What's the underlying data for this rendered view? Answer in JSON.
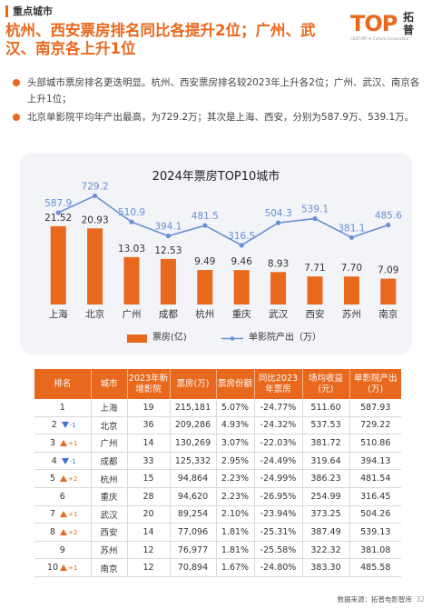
{
  "section_tag": "重点城市",
  "headline": "杭州、西安票房排名同比各提升2位；广州、武汉、南京各上升1位",
  "logo": {
    "mark": "TOP",
    "name": "拓普",
    "tagline": "CENTURY ♦ Culture Corporation"
  },
  "bullets": [
    "头部城市票房排名更迭明显。杭州、西安票房排名较2023年上升各2位；广州、武汉、南京各上升1位；",
    "北京单影院平均年产出最高，为729.2万；其次是上海、西安，分别为587.9万、539.1万。"
  ],
  "chart_data": {
    "type": "bar",
    "title": "2024年票房TOP10城市",
    "categories": [
      "上海",
      "北京",
      "广州",
      "成都",
      "杭州",
      "重庆",
      "武汉",
      "西安",
      "苏州",
      "南京"
    ],
    "series": [
      {
        "name": "票房(亿)",
        "type": "bar",
        "color": "#e8681d",
        "values": [
          21.52,
          20.93,
          13.03,
          12.53,
          9.49,
          9.46,
          8.93,
          7.71,
          7.7,
          7.09
        ]
      },
      {
        "name": "单影院产出（万）",
        "type": "line",
        "color": "#6a8fd6",
        "values": [
          587.9,
          729.2,
          510.9,
          394.1,
          481.5,
          316.5,
          504.3,
          539.1,
          381.1,
          485.6
        ]
      }
    ],
    "legend_position": "bottom"
  },
  "table": {
    "headers": [
      "排名",
      "城市",
      "2023年新增影院",
      "票房(万)",
      "票房份额",
      "同比2023年票房",
      "场均收益(元)",
      "单影院产出(万)"
    ],
    "rows": [
      {
        "rank": "1",
        "change": "",
        "dir": "",
        "city": "上海",
        "new": "19",
        "box": "215,181",
        "share": "5.07%",
        "yoy": "-24.77%",
        "avg": "511.60",
        "per": "587.93"
      },
      {
        "rank": "2",
        "change": "-1",
        "dir": "down",
        "city": "北京",
        "new": "36",
        "box": "209,286",
        "share": "4.93%",
        "yoy": "-24.32%",
        "avg": "537.53",
        "per": "729.22"
      },
      {
        "rank": "3",
        "change": "+1",
        "dir": "up",
        "city": "广州",
        "new": "14",
        "box": "130,269",
        "share": "3.07%",
        "yoy": "-22.03%",
        "avg": "381.72",
        "per": "510.86"
      },
      {
        "rank": "4",
        "change": "-1",
        "dir": "down",
        "city": "成都",
        "new": "33",
        "box": "125,332",
        "share": "2.95%",
        "yoy": "-24.49%",
        "avg": "319.64",
        "per": "394.13"
      },
      {
        "rank": "5",
        "change": "+2",
        "dir": "up",
        "city": "杭州",
        "new": "15",
        "box": "94,864",
        "share": "2.23%",
        "yoy": "-24.99%",
        "avg": "386.23",
        "per": "481.54"
      },
      {
        "rank": "6",
        "change": "",
        "dir": "",
        "city": "重庆",
        "new": "28",
        "box": "94,620",
        "share": "2.23%",
        "yoy": "-26.95%",
        "avg": "254.99",
        "per": "316.45"
      },
      {
        "rank": "7",
        "change": "+1",
        "dir": "up",
        "city": "武汉",
        "new": "20",
        "box": "89,254",
        "share": "2.10%",
        "yoy": "-23.94%",
        "avg": "373.25",
        "per": "504.26"
      },
      {
        "rank": "8",
        "change": "+2",
        "dir": "up",
        "city": "西安",
        "new": "14",
        "box": "77,096",
        "share": "1.81%",
        "yoy": "-25.31%",
        "avg": "387.49",
        "per": "539.13"
      },
      {
        "rank": "9",
        "change": "",
        "dir": "",
        "city": "苏州",
        "new": "12",
        "box": "76,977",
        "share": "1.81%",
        "yoy": "-25.58%",
        "avg": "322.32",
        "per": "381.08"
      },
      {
        "rank": "10",
        "change": "+1",
        "dir": "up",
        "city": "南京",
        "new": "12",
        "box": "70,894",
        "share": "1.67%",
        "yoy": "-24.80%",
        "avg": "383.30",
        "per": "485.58"
      }
    ]
  },
  "footer": {
    "source": "数据来源：拓普电影智库",
    "page": "32"
  }
}
